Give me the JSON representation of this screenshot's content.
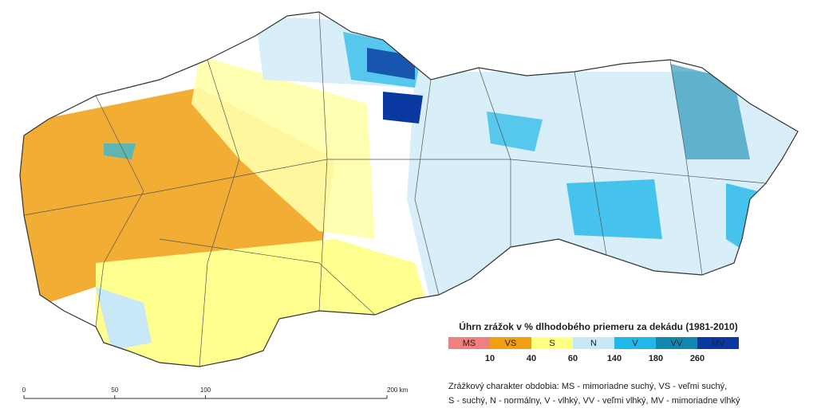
{
  "legend": {
    "title": "Úhrn zrážok v % dlhodobého priemeru za dekádu (1981-2010)",
    "classes": [
      {
        "label": "MS",
        "color": "#f08080"
      },
      {
        "label": "VS",
        "color": "#f0a010"
      },
      {
        "label": "S",
        "color": "#ffff80"
      },
      {
        "label": "N",
        "color": "#c8e8f8"
      },
      {
        "label": "V",
        "color": "#20b8e8"
      },
      {
        "label": "VV",
        "color": "#1088b0"
      },
      {
        "label": "MV",
        "color": "#0838a0"
      }
    ],
    "thresholds": [
      10,
      40,
      60,
      140,
      180,
      260
    ]
  },
  "scale_bar": {
    "ticks": [
      0,
      50,
      100,
      {
        "value": 200,
        "label": "200 km"
      }
    ],
    "max": 200
  },
  "footnote": [
    "Zrážkový charakter obdobia: MS - mimoriadne suchý, VS - veľmi suchý,",
    "S - suchý, N - normálny, V - vlhký, VV - veľmi vlhký, MV - mimoriadne vlhký"
  ]
}
